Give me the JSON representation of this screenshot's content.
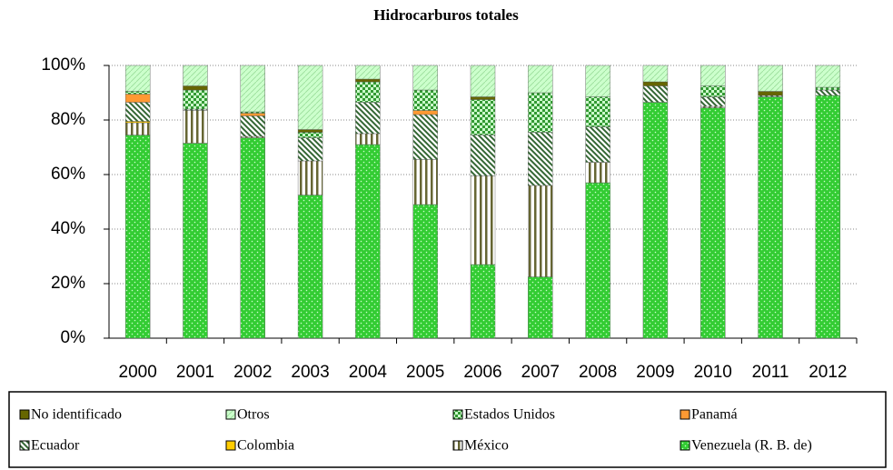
{
  "chart_data": {
    "type": "bar",
    "stacked": true,
    "title": "Hidrocarburos totales",
    "categories": [
      "2000",
      "2001",
      "2002",
      "2003",
      "2004",
      "2005",
      "2006",
      "2007",
      "2008",
      "2009",
      "2010",
      "2011",
      "2012"
    ],
    "ylim": [
      0,
      100
    ],
    "yticks": [
      {
        "value": 0,
        "label": "0%"
      },
      {
        "value": 20,
        "label": "20%"
      },
      {
        "value": 40,
        "label": "40%"
      },
      {
        "value": 60,
        "label": "60%"
      },
      {
        "value": 80,
        "label": "80%"
      },
      {
        "value": 100,
        "label": "100%"
      }
    ],
    "grid": true,
    "series": [
      {
        "name": "Venezuela (R. B. de)",
        "color": "#33cc33",
        "values": [
          74.5,
          71.5,
          73.5,
          52.5,
          71,
          49,
          27,
          22.5,
          57,
          86.5,
          84.5,
          88.5,
          89
        ]
      },
      {
        "name": "México",
        "color": "#666633",
        "values": [
          4.5,
          12,
          0.5,
          12.5,
          4,
          16.5,
          32.5,
          33.5,
          7.5,
          0,
          0.5,
          0,
          0
        ]
      },
      {
        "name": "Colombia",
        "color": "#ffcc00",
        "values": [
          0.5,
          0,
          0,
          0,
          0,
          0,
          0,
          0,
          0,
          0,
          0,
          0,
          0
        ]
      },
      {
        "name": "Ecuador",
        "color": "#336633",
        "values": [
          7,
          0.5,
          7.5,
          8.5,
          11.5,
          16.5,
          15,
          19.5,
          13,
          6,
          3.5,
          0.5,
          2
        ]
      },
      {
        "name": "Panamá",
        "color": "#ff9933",
        "values": [
          3,
          0,
          1,
          0,
          0,
          1.5,
          0,
          0,
          0,
          0,
          0,
          0,
          0
        ]
      },
      {
        "name": "Estados Unidos",
        "color": "#339933",
        "values": [
          1,
          7,
          0.5,
          2,
          7.5,
          7.5,
          13,
          14.5,
          11,
          0,
          4,
          0,
          1
        ]
      },
      {
        "name": "No identificado",
        "color": "#666600",
        "values": [
          0,
          1.5,
          0,
          1,
          1,
          0,
          1,
          0,
          0,
          1.5,
          0,
          1.5,
          0
        ]
      },
      {
        "name": "Otros",
        "color": "#ccffcc",
        "values": [
          9.5,
          7.5,
          17,
          23.5,
          5,
          9,
          11.5,
          10,
          11.5,
          6,
          7.5,
          9.5,
          8
        ]
      }
    ]
  }
}
